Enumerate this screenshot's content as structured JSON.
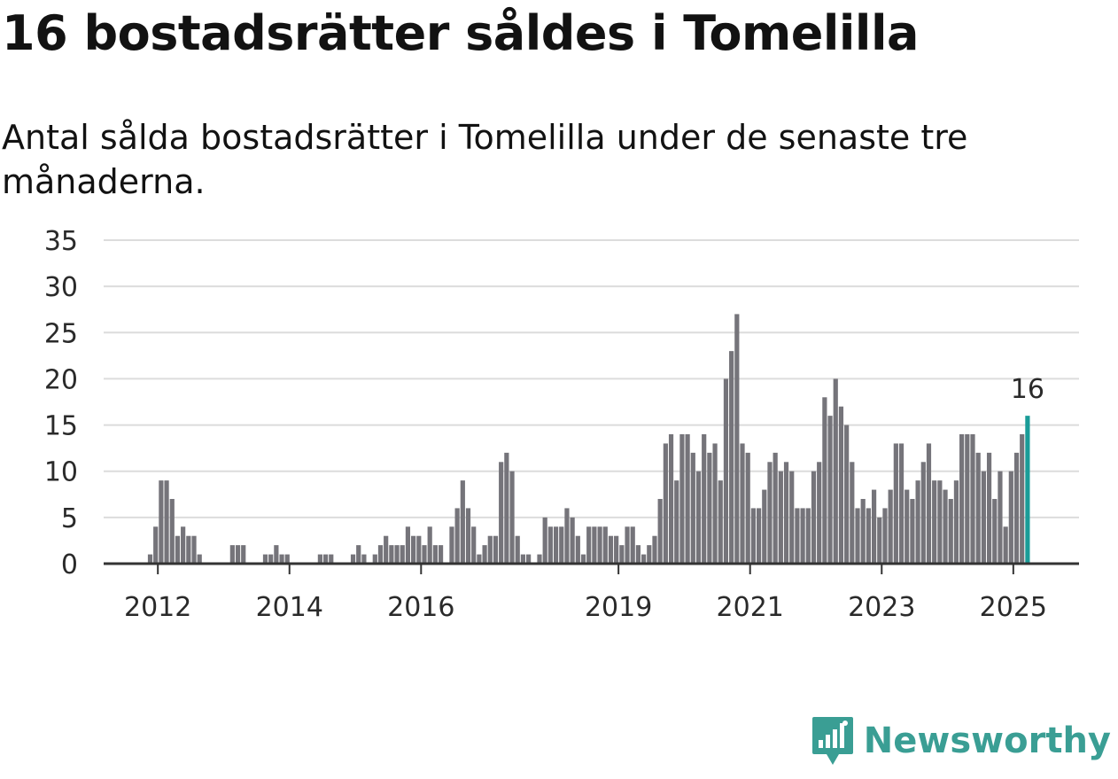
{
  "title": "16 bostadsrätter såldes i Tomelilla",
  "subtitle": "Antal sålda bostadsrätter i Tomelilla under de senaste tre månaderna.",
  "brand": {
    "name": "Newsworthy",
    "icon": "newsworthy-chart-logo-icon",
    "color": "#3a9e94"
  },
  "colors": {
    "bar": "#75747a",
    "highlight": "#1a9c98",
    "grid": "#dcdcdc",
    "axis": "#333333"
  },
  "chart_data": {
    "type": "bar",
    "ylim": [
      0,
      35
    ],
    "yticks": [
      0,
      5,
      10,
      15,
      20,
      25,
      30,
      35
    ],
    "grid": true,
    "x_start": "2011-09",
    "xtick_labels": [
      {
        "label": "2012",
        "date": "2012-01"
      },
      {
        "label": "2014",
        "date": "2014-01"
      },
      {
        "label": "2016",
        "date": "2016-01"
      },
      {
        "label": "2019",
        "date": "2019-01"
      },
      {
        "label": "2021",
        "date": "2021-01"
      },
      {
        "label": "2023",
        "date": "2023-01"
      },
      {
        "label": "2025",
        "date": "2025-01"
      }
    ],
    "highlight_label": "16",
    "values": [
      0,
      0,
      0,
      1,
      4,
      9,
      9,
      7,
      3,
      4,
      3,
      3,
      1,
      0,
      0,
      0,
      0,
      0,
      2,
      2,
      2,
      0,
      0,
      0,
      1,
      1,
      2,
      1,
      1,
      0,
      0,
      0,
      0,
      0,
      1,
      1,
      1,
      0,
      0,
      0,
      1,
      2,
      1,
      0,
      1,
      2,
      3,
      2,
      2,
      2,
      4,
      3,
      3,
      2,
      4,
      2,
      2,
      0,
      4,
      6,
      9,
      6,
      4,
      1,
      2,
      3,
      3,
      11,
      12,
      10,
      3,
      1,
      1,
      0,
      1,
      5,
      4,
      4,
      4,
      6,
      5,
      3,
      1,
      4,
      4,
      4,
      4,
      3,
      3,
      2,
      4,
      4,
      2,
      1,
      2,
      3,
      7,
      13,
      14,
      9,
      14,
      14,
      12,
      10,
      14,
      12,
      13,
      9,
      20,
      23,
      27,
      13,
      12,
      6,
      6,
      8,
      11,
      12,
      10,
      11,
      10,
      6,
      6,
      6,
      10,
      11,
      18,
      16,
      20,
      17,
      15,
      11,
      6,
      7,
      6,
      8,
      5,
      6,
      8,
      13,
      13,
      8,
      7,
      9,
      11,
      13,
      9,
      9,
      8,
      7,
      9,
      14,
      14,
      14,
      12,
      10,
      12,
      7,
      10,
      4,
      10,
      12,
      14,
      16
    ]
  }
}
